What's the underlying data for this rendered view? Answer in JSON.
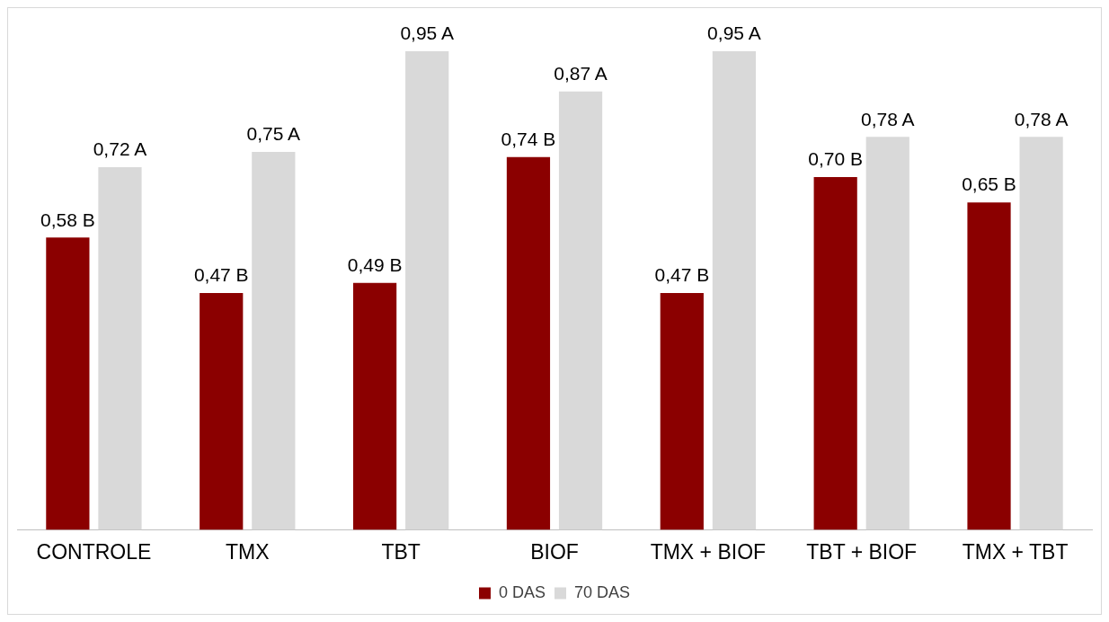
{
  "chart_data": {
    "type": "bar",
    "categories": [
      "CONTROLE",
      "TMX",
      "TBT",
      "BIOF",
      "TMX + BIOF",
      "TBT + BIOF",
      "TMX + TBT"
    ],
    "series": [
      {
        "name": "0 DAS",
        "color": "#8b0000",
        "values": [
          0.58,
          0.47,
          0.49,
          0.74,
          0.47,
          0.7,
          0.65
        ],
        "value_labels": [
          "0,58 B",
          "0,47 B",
          "0,49 B",
          "0,74 B",
          "0,47 B",
          "0,70 B",
          "0,65 B"
        ]
      },
      {
        "name": "70 DAS",
        "color": "#d9d9d9",
        "values": [
          0.72,
          0.75,
          0.95,
          0.87,
          0.95,
          0.78,
          0.78
        ],
        "value_labels": [
          "0,72 A",
          "0,75 A",
          "0,95 A",
          "0,87 A",
          "0,95 A",
          "0,78 A",
          "0,78 A"
        ]
      }
    ],
    "legend": "bottom",
    "grid": false,
    "tick_labels": "x"
  }
}
